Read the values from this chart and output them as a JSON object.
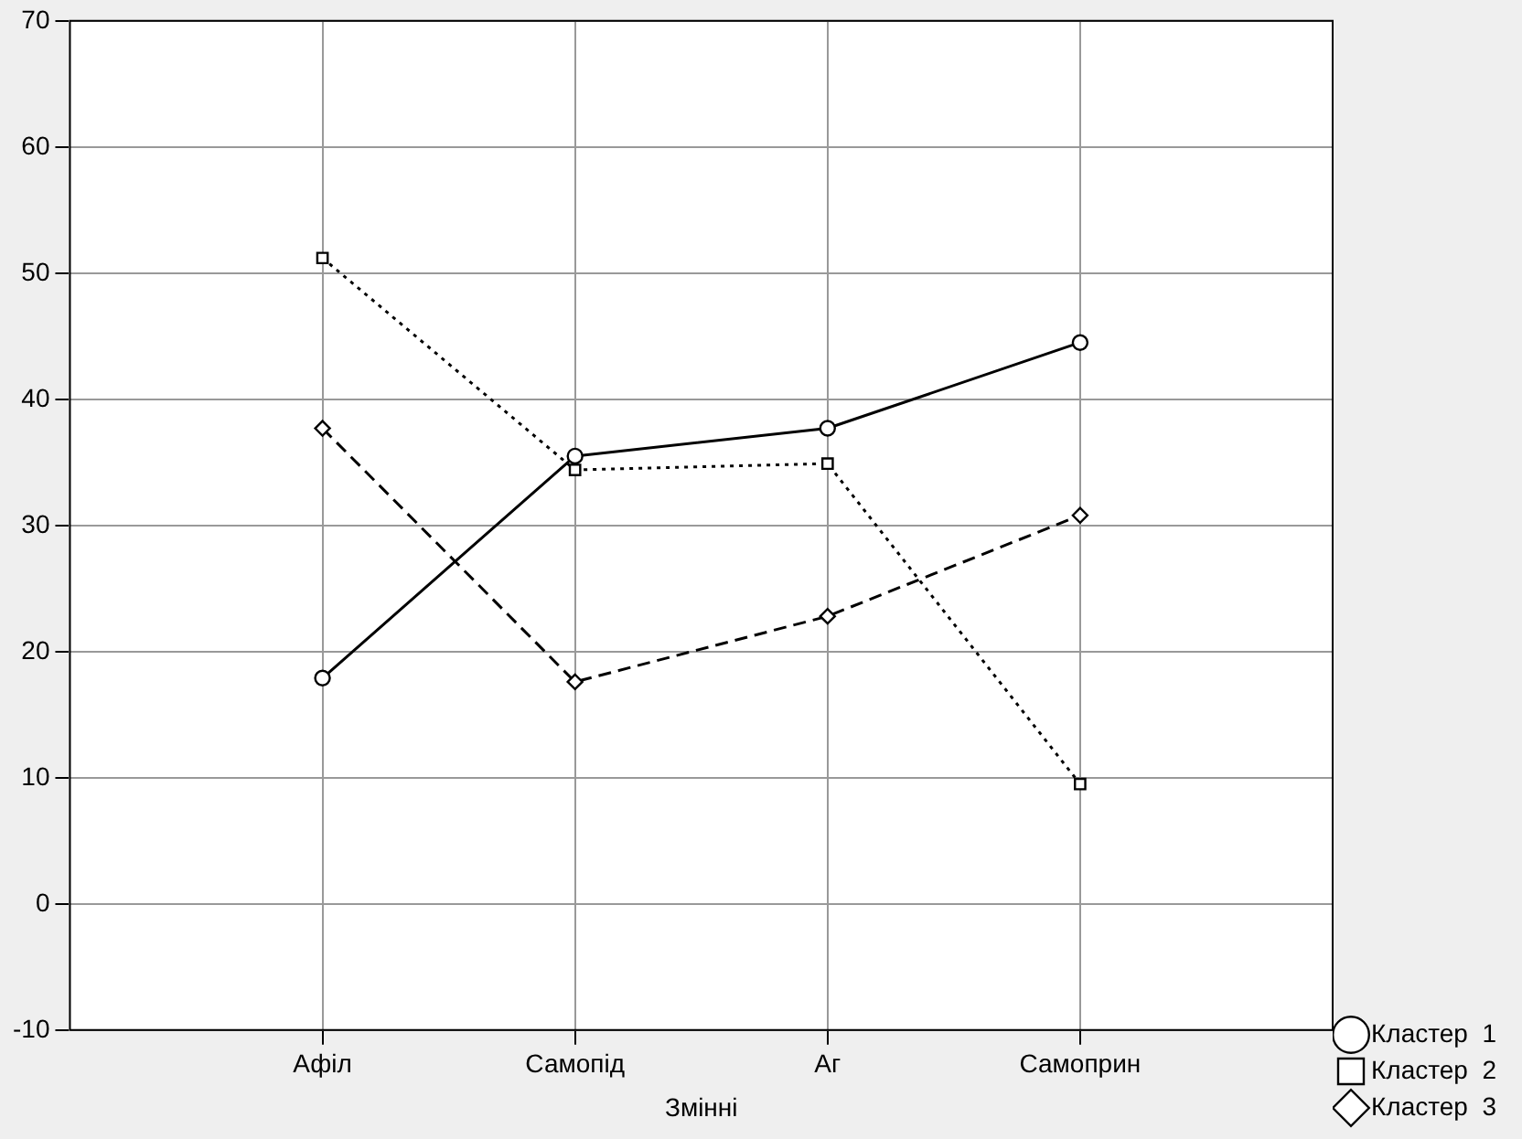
{
  "chart_data": {
    "type": "line",
    "xlabel": "Змінні",
    "categories": [
      "Афіл",
      "Самопід",
      "Аг",
      "Самоприн"
    ],
    "ylim": [
      -10,
      70
    ],
    "yticks": [
      -10,
      0,
      10,
      20,
      30,
      40,
      50,
      60,
      70
    ],
    "grid": true,
    "legend": "bottom right",
    "series": [
      {
        "name": "Кластер  1",
        "color": "#000000",
        "marker": "circle",
        "line_style": "solid",
        "values": [
          17.9,
          35.5,
          37.7,
          44.5
        ]
      },
      {
        "name": "Кластер  2",
        "color": "#000000",
        "marker": "square",
        "line_style": "dotted",
        "values": [
          51.2,
          34.4,
          34.9,
          9.5
        ]
      },
      {
        "name": "Кластер  3",
        "color": "#000000",
        "marker": "diamond",
        "line_style": "dashed",
        "values": [
          37.7,
          17.6,
          22.8,
          30.8
        ]
      }
    ]
  }
}
